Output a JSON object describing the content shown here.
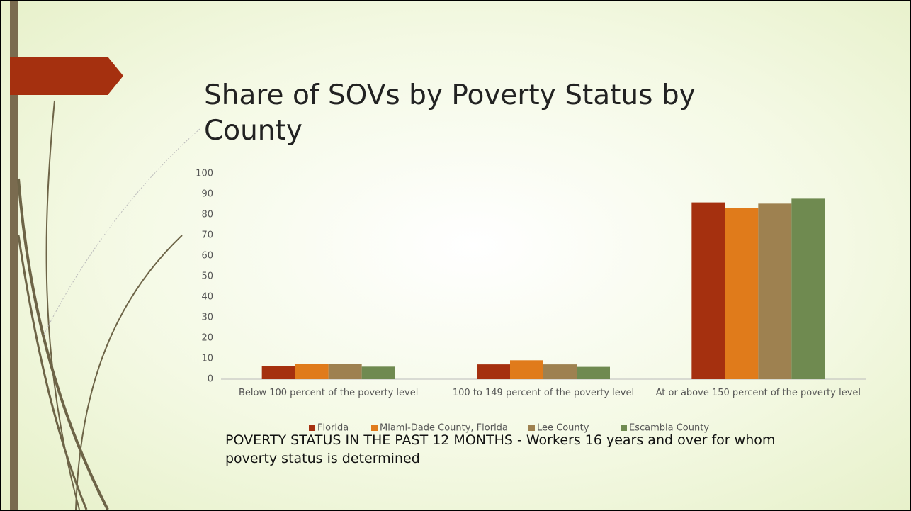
{
  "chart_data": {
    "type": "bar",
    "title": "Share of SOVs by Poverty Status by County",
    "categories": [
      "Below 100 percent of the poverty level",
      "100 to 149 percent of the poverty level",
      "At or above 150 percent of the poverty level"
    ],
    "series": [
      {
        "name": "Florida",
        "color": "#a5300f",
        "values": [
          6.5,
          7.2,
          86
        ]
      },
      {
        "name": "Miami-Dade County, Florida",
        "color": "#e07b1b",
        "values": [
          7.3,
          9.2,
          83.3
        ]
      },
      {
        "name": "Lee County",
        "color": "#9e8150",
        "values": [
          7.3,
          7.2,
          85.4
        ]
      },
      {
        "name": "Escambia County",
        "color": "#6f8a50",
        "values": [
          6.1,
          6,
          87.8
        ]
      }
    ],
    "ylim": [
      0,
      100
    ],
    "yticks": [
      0,
      10,
      20,
      30,
      40,
      50,
      60,
      70,
      80,
      90,
      100
    ],
    "grid": false,
    "legend": "bottom",
    "note": "POVERTY STATUS IN THE PAST 12 MONTHS - Workers 16 years and over for whom poverty status is determined"
  }
}
